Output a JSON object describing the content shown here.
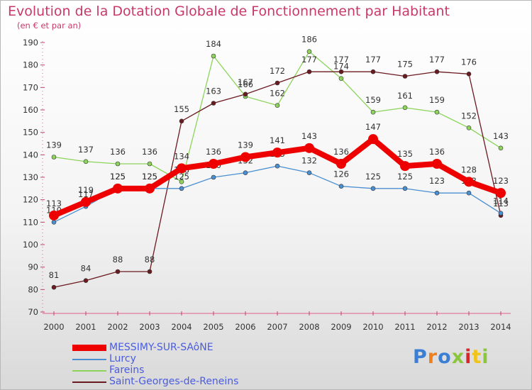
{
  "chart_data": {
    "type": "line",
    "title": "Evolution de la Dotation Globale de Fonctionnement par Habitant",
    "subtitle": "(en € et par an)",
    "x": [
      2000,
      2001,
      2002,
      2003,
      2004,
      2005,
      2006,
      2007,
      2008,
      2009,
      2010,
      2011,
      2012,
      2013,
      2014
    ],
    "ylim": [
      70,
      190
    ],
    "yticks": [
      70,
      80,
      90,
      100,
      110,
      120,
      130,
      140,
      150,
      160,
      170,
      180,
      190
    ],
    "grid": false,
    "series": [
      {
        "name": "Fareins",
        "color": "#8cd45a",
        "values": [
          139,
          137,
          136,
          136,
          128,
          184,
          166,
          162,
          186,
          174,
          159,
          161,
          159,
          152,
          143
        ]
      },
      {
        "name": "Saint-Georges-de-Reneins",
        "color": "#6b1a1f",
        "values": [
          81,
          84,
          88,
          88,
          155,
          163,
          167,
          172,
          177,
          177,
          177,
          175,
          177,
          176,
          113
        ]
      },
      {
        "name": "Lurcy",
        "color": "#4a8fd1",
        "values": [
          110,
          117,
          125,
          125,
          125,
          130,
          132,
          135,
          132,
          126,
          125,
          125,
          123,
          123,
          114
        ]
      },
      {
        "name": "MESSIMY-SUR-SAôNE",
        "color": "#ee0000",
        "values": [
          113,
          119,
          125,
          125,
          134,
          136,
          139,
          141,
          143,
          136,
          147,
          135,
          136,
          128,
          123
        ]
      }
    ],
    "legend": [
      "MESSIMY-SUR-SAôNE",
      "Lurcy",
      "Fareins",
      "Saint-Georges-de-Reneins"
    ]
  },
  "logo": {
    "text": "Proxiti",
    "colors": [
      "#3a7fd5",
      "#f0801e",
      "#3a7fd5",
      "#8cc63f",
      "#d9262b",
      "#f0c419",
      "#8cc63f"
    ]
  }
}
